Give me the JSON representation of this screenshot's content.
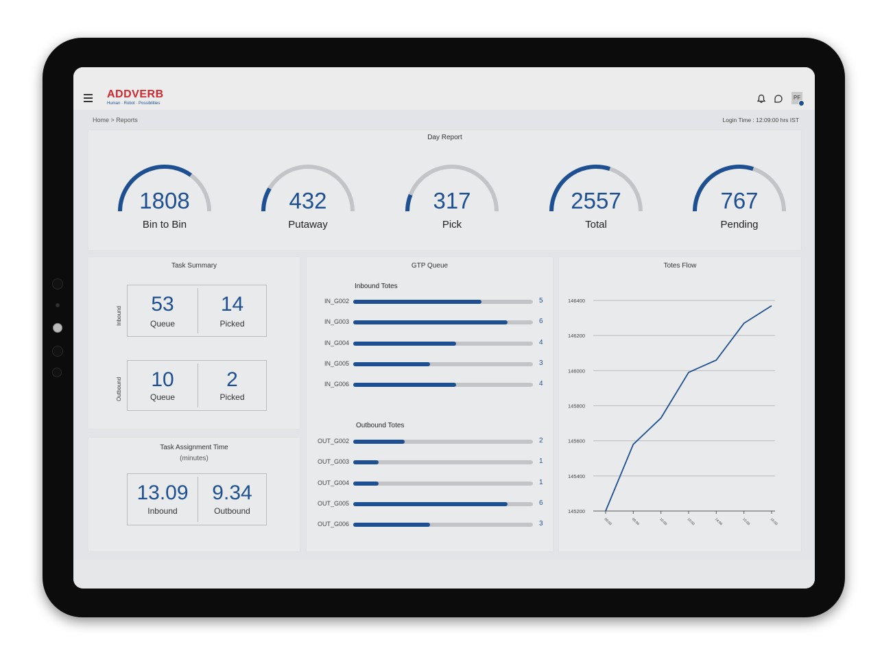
{
  "app": {
    "logo": "ADDVERB",
    "tagline": "Human · Robot · Possibilities",
    "user_initials": "PF",
    "breadcrumb": "Home > Reports",
    "login_time": "Login Time : 12:09:00 hrs IST",
    "colors": {
      "accent": "#1d4f91",
      "brand_red": "#d0282e",
      "track": "#c2c4c7"
    },
    "icons": [
      "menu-icon",
      "bell-icon",
      "chat-icon"
    ]
  },
  "day_report": {
    "title": "Day Report",
    "gauges": [
      {
        "value": "1808",
        "label": "Bin to Bin",
        "fraction": 0.7
      },
      {
        "value": "432",
        "label": "Putaway",
        "fraction": 0.17
      },
      {
        "value": "317",
        "label": "Pick",
        "fraction": 0.12
      },
      {
        "value": "2557",
        "label": "Total",
        "fraction": 0.6
      },
      {
        "value": "767",
        "label": "Pending",
        "fraction": 0.6
      }
    ]
  },
  "task_summary": {
    "title": "Task Summary",
    "inbound": {
      "label": "Inbound",
      "queue": "53",
      "queue_label": "Queue",
      "picked": "14",
      "picked_label": "Picked"
    },
    "outbound": {
      "label": "Outbound",
      "queue": "10",
      "queue_label": "Queue",
      "picked": "2",
      "picked_label": "Picked"
    }
  },
  "task_assignment": {
    "title": "Task Assignment Time",
    "subtitle": "(minutes)",
    "inbound": "13.09",
    "inbound_label": "Inbound",
    "outbound": "9.34",
    "outbound_label": "Outbound"
  },
  "gtp_queue": {
    "title": "GTP Queue",
    "inbound_title": "Inbound Totes",
    "outbound_title": "Outbound Totes",
    "inbound": [
      {
        "name": "IN_G002",
        "count": 5
      },
      {
        "name": "IN_G003",
        "count": 6
      },
      {
        "name": "IN_G004",
        "count": 4
      },
      {
        "name": "IN_G005",
        "count": 3
      },
      {
        "name": "IN_G006",
        "count": 4
      }
    ],
    "outbound": [
      {
        "name": "OUT_G002",
        "count": 2
      },
      {
        "name": "OUT_G003",
        "count": 1
      },
      {
        "name": "OUT_G004",
        "count": 1
      },
      {
        "name": "OUT_G005",
        "count": 6
      },
      {
        "name": "OUT_G006",
        "count": 3
      }
    ],
    "bar_max": 7
  },
  "totes_flow": {
    "title": "Totes Flow",
    "chart_data": {
      "type": "line",
      "x": [
        "09:00",
        "09:00",
        "10:00",
        "10:00",
        "14:00",
        "15:00",
        "16:00"
      ],
      "ylim": [
        145200,
        146400
      ],
      "yticks": [
        "146400",
        "146200",
        "146000",
        "145800",
        "145600",
        "145400",
        "145200"
      ],
      "series": [
        {
          "values": [
            145200,
            145580,
            145730,
            145990,
            146060,
            146270,
            146370
          ]
        }
      ]
    }
  }
}
